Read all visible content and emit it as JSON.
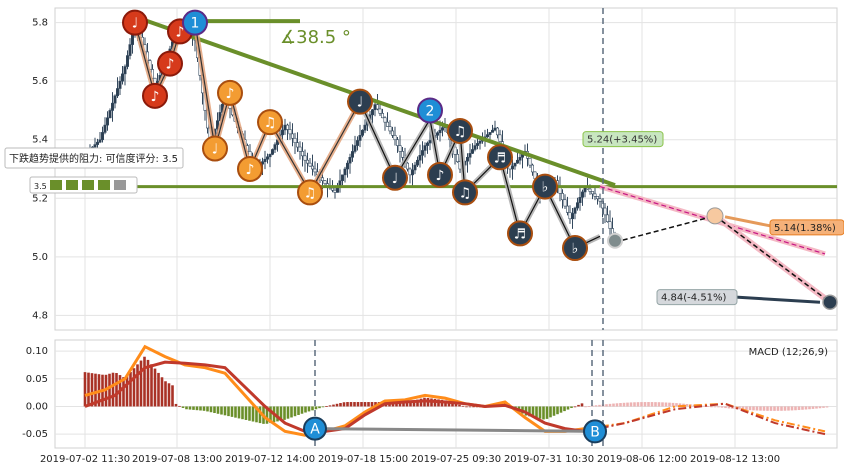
{
  "colors": {
    "up": "#c0392b",
    "down": "#2c3e50",
    "trendline": "#6a8f2a",
    "wave_orange": "#f39c12",
    "wave_dark": "#2c3e50",
    "projection": "#f4b9c4",
    "macd_pos": "#a93226",
    "macd_neg": "#6a8f2a",
    "macd_line": "#ff8c1a",
    "signal_line": "#c0392b"
  },
  "chart_data": [
    {
      "type": "candlestick",
      "title": "",
      "ylim": [
        4.75,
        5.85
      ],
      "y_ticks": [
        "4.8",
        "5.0",
        "5.2",
        "5.4",
        "5.6",
        "5.8"
      ],
      "grid": true,
      "x_ticks": [
        "2019-07-02 11:30",
        "2019-07-08 13:00",
        "2019-07-12 14:00",
        "2019-07-18 15:00",
        "2019-07-25 09:30",
        "2019-07-31 10:30",
        "2019-08-06 12:00",
        "2019-08-12 13:00"
      ],
      "price_path": [
        [
          0,
          5.35
        ],
        [
          3,
          5.4
        ],
        [
          6,
          5.55
        ],
        [
          8,
          5.65
        ],
        [
          10,
          5.8
        ],
        [
          12,
          5.7
        ],
        [
          14,
          5.58
        ],
        [
          16,
          5.66
        ],
        [
          18,
          5.76
        ],
        [
          20,
          5.78
        ],
        [
          22,
          5.74
        ],
        [
          25,
          5.38
        ],
        [
          28,
          5.55
        ],
        [
          31,
          5.42
        ],
        [
          34,
          5.3
        ],
        [
          37,
          5.35
        ],
        [
          40,
          5.45
        ],
        [
          44,
          5.33
        ],
        [
          48,
          5.25
        ],
        [
          50,
          5.22
        ],
        [
          54,
          5.38
        ],
        [
          58,
          5.52
        ],
        [
          62,
          5.4
        ],
        [
          65,
          5.28
        ],
        [
          68,
          5.38
        ],
        [
          72,
          5.45
        ],
        [
          75,
          5.3
        ],
        [
          78,
          5.38
        ],
        [
          82,
          5.44
        ],
        [
          85,
          5.3
        ],
        [
          88,
          5.36
        ],
        [
          91,
          5.22
        ],
        [
          94,
          5.26
        ],
        [
          97,
          5.13
        ],
        [
          100,
          5.24
        ],
        [
          103,
          5.19
        ],
        [
          106,
          5.05
        ]
      ],
      "support_level": 5.24,
      "trend_angle_label": "∡38.5 °",
      "resistance_label": "下跌趋势提供的阻力: 可信度评分: 3.5",
      "resistance_score": "3.5",
      "rating_label": "3.5",
      "annotations": [
        {
          "label": "5.24(+3.45%)",
          "value": 5.24,
          "change": "+3.45%"
        },
        {
          "label": "5.14(1.38%)",
          "value": 5.14,
          "change": "1.38%"
        },
        {
          "label": "4.84(-4.51%)",
          "value": 4.84,
          "change": "-4.51%"
        }
      ],
      "wave_labels": [
        "1",
        "2"
      ],
      "markers": [
        {
          "x": 10,
          "y": 5.8,
          "glyph": "♩",
          "style": "red"
        },
        {
          "x": 14,
          "y": 5.55,
          "glyph": "♪",
          "style": "red"
        },
        {
          "x": 17,
          "y": 5.66,
          "glyph": "♪",
          "style": "red"
        },
        {
          "x": 19,
          "y": 5.77,
          "glyph": "♪",
          "style": "red"
        },
        {
          "x": 22,
          "y": 5.8,
          "glyph": "1",
          "style": "blue"
        },
        {
          "x": 26,
          "y": 5.37,
          "glyph": "♩",
          "style": "orange"
        },
        {
          "x": 29,
          "y": 5.56,
          "glyph": "♪",
          "style": "orange"
        },
        {
          "x": 33,
          "y": 5.3,
          "glyph": "♪",
          "style": "orange"
        },
        {
          "x": 37,
          "y": 5.46,
          "glyph": "♫",
          "style": "orange"
        },
        {
          "x": 45,
          "y": 5.22,
          "glyph": "♫",
          "style": "orange"
        },
        {
          "x": 55,
          "y": 5.53,
          "glyph": "♩",
          "style": "dark"
        },
        {
          "x": 62,
          "y": 5.27,
          "glyph": "♩",
          "style": "dark"
        },
        {
          "x": 69,
          "y": 5.5,
          "glyph": "2",
          "style": "blue"
        },
        {
          "x": 71,
          "y": 5.28,
          "glyph": "♪",
          "style": "dark"
        },
        {
          "x": 75,
          "y": 5.43,
          "glyph": "♫",
          "style": "dark"
        },
        {
          "x": 76,
          "y": 5.22,
          "glyph": "♫",
          "style": "dark"
        },
        {
          "x": 83,
          "y": 5.34,
          "glyph": "♬",
          "style": "dark"
        },
        {
          "x": 87,
          "y": 5.08,
          "glyph": "♬",
          "style": "dark"
        },
        {
          "x": 92,
          "y": 5.24,
          "glyph": "♭",
          "style": "dark"
        },
        {
          "x": 98,
          "y": 5.03,
          "glyph": "♭",
          "style": "dark"
        }
      ]
    },
    {
      "type": "bar+line",
      "title": "",
      "ylim": [
        -0.075,
        0.12
      ],
      "y_ticks": [
        "-0.05",
        "0.00",
        "0.05",
        "0.10"
      ],
      "legend": "MACD (12;26,9)",
      "point_labels": [
        "A",
        "B"
      ],
      "macd_line": [
        [
          0,
          0.02
        ],
        [
          4,
          0.03
        ],
        [
          8,
          0.05
        ],
        [
          12,
          0.108
        ],
        [
          16,
          0.09
        ],
        [
          20,
          0.075
        ],
        [
          24,
          0.07
        ],
        [
          28,
          0.06
        ],
        [
          32,
          0.02
        ],
        [
          36,
          -0.02
        ],
        [
          40,
          -0.045
        ],
        [
          44,
          -0.052
        ],
        [
          48,
          -0.045
        ],
        [
          52,
          -0.035
        ],
        [
          56,
          -0.01
        ],
        [
          60,
          0.01
        ],
        [
          64,
          0.012
        ],
        [
          68,
          0.02
        ],
        [
          72,
          0.015
        ],
        [
          76,
          0.005
        ],
        [
          80,
          0.0
        ],
        [
          84,
          0.008
        ],
        [
          88,
          -0.02
        ],
        [
          92,
          -0.045
        ],
        [
          96,
          -0.045
        ],
        [
          100,
          -0.04
        ]
      ],
      "signal_line": [
        [
          0,
          0.0
        ],
        [
          6,
          0.02
        ],
        [
          12,
          0.07
        ],
        [
          16,
          0.08
        ],
        [
          20,
          0.078
        ],
        [
          24,
          0.075
        ],
        [
          28,
          0.07
        ],
        [
          32,
          0.035
        ],
        [
          36,
          0.0
        ],
        [
          40,
          -0.03
        ],
        [
          44,
          -0.045
        ],
        [
          48,
          -0.045
        ],
        [
          52,
          -0.04
        ],
        [
          56,
          -0.015
        ],
        [
          60,
          0.005
        ],
        [
          64,
          0.008
        ],
        [
          68,
          0.01
        ],
        [
          72,
          0.008
        ],
        [
          76,
          0.005
        ],
        [
          80,
          0.0
        ],
        [
          84,
          0.002
        ],
        [
          88,
          -0.01
        ],
        [
          92,
          -0.03
        ],
        [
          96,
          -0.04
        ],
        [
          100,
          -0.045
        ]
      ]
    }
  ]
}
